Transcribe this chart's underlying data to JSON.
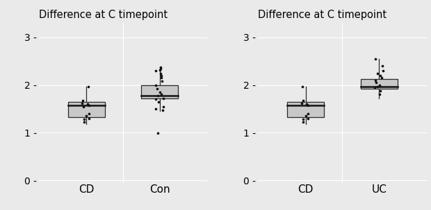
{
  "title": "Difference at C timepoint",
  "background_color": "#EAEAEA",
  "panel_background": "#EAEAEA",
  "ylim": [
    -0.05,
    3.3
  ],
  "yticks": [
    0,
    1,
    2,
    3
  ],
  "ytick_labels": [
    "0 -",
    "1 -",
    "2 -",
    "3 -"
  ],
  "box_color": "#C8C8C8",
  "box_edge_color": "#2a2a2a",
  "median_color": "#111111",
  "whisker_color": "#2a2a2a",
  "dot_color": "#111111",
  "grid_color": "#ffffff",
  "left_panel": {
    "title": "Difference at C timepoint",
    "categories": [
      "CD",
      "Con"
    ],
    "CD": {
      "q1": 1.33,
      "median": 1.57,
      "q3": 1.65,
      "whisker_low": 1.18,
      "whisker_high": 1.97,
      "points": [
        1.57,
        1.62,
        1.6,
        1.4,
        1.35,
        1.28,
        1.22,
        1.3,
        1.55,
        1.68,
        1.97
      ]
    },
    "Con": {
      "q1": 1.72,
      "median": 1.78,
      "q3": 2.0,
      "whisker_low": 1.45,
      "whisker_high": 2.38,
      "outliers": [
        0.99
      ],
      "points": [
        1.78,
        1.85,
        1.92,
        2.0,
        2.08,
        2.15,
        2.2,
        2.25,
        2.3,
        1.65,
        1.55,
        1.5,
        1.47,
        1.72,
        1.7,
        1.8,
        2.38,
        2.35,
        2.32,
        0.99
      ]
    }
  },
  "right_panel": {
    "title": "Difference at C timepoint",
    "categories": [
      "CD",
      "UC"
    ],
    "CD": {
      "q1": 1.33,
      "median": 1.57,
      "q3": 1.65,
      "whisker_low": 1.18,
      "whisker_high": 1.97,
      "points": [
        1.57,
        1.62,
        1.6,
        1.4,
        1.35,
        1.28,
        1.22,
        1.3,
        1.68,
        1.97
      ]
    },
    "UC": {
      "q1": 1.92,
      "median": 1.97,
      "q3": 2.12,
      "whisker_low": 1.72,
      "whisker_high": 2.55,
      "points": [
        1.97,
        2.0,
        2.05,
        2.1,
        2.15,
        2.2,
        1.88,
        1.8,
        1.95,
        2.25,
        2.3,
        2.55,
        2.4
      ]
    }
  }
}
